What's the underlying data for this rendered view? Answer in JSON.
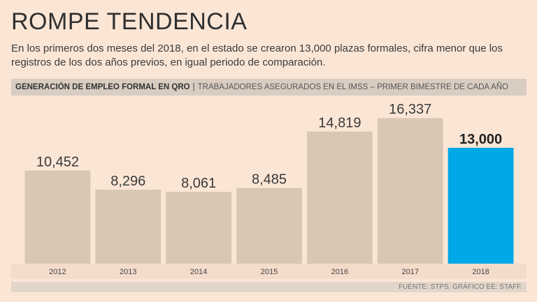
{
  "header": {
    "title": "ROMPE TENDENCIA",
    "subtitle": "En los primeros dos meses del 2018, en el estado se crearon 13,000 plazas formales, cifra menor que los registros de los dos años previos, en igual periodo de comparación.",
    "band_strong": "GENERACIÓN DE EMPLEO FORMAL EN QRO",
    "band_separator": "|",
    "band_light": "TRABAJADORES ASEGURADOS EN EL IMSS – PRIMER BIMESTRE DE CADA AÑO"
  },
  "footer": {
    "source": "FUENTE: STPS.  GRÁFICO EE: STAFF."
  },
  "colors": {
    "bar": "#d9c7b6",
    "highlight": "#00a8e8",
    "background": "#fbe6d6"
  },
  "chart_data": {
    "type": "bar",
    "title": "GENERACIÓN DE EMPLEO FORMAL EN QRO",
    "categories": [
      "2012",
      "2013",
      "2014",
      "2015",
      "2016",
      "2017",
      "2018"
    ],
    "values": [
      10452,
      8296,
      8061,
      8485,
      14819,
      16337,
      13000
    ],
    "value_labels": [
      "10,452",
      "8,296",
      "8,061",
      "8,485",
      "14,819",
      "16,337",
      "13,000"
    ],
    "highlight_index": 6,
    "ylim": [
      0,
      18000
    ],
    "xlabel": "",
    "ylabel": "",
    "grid": false
  }
}
